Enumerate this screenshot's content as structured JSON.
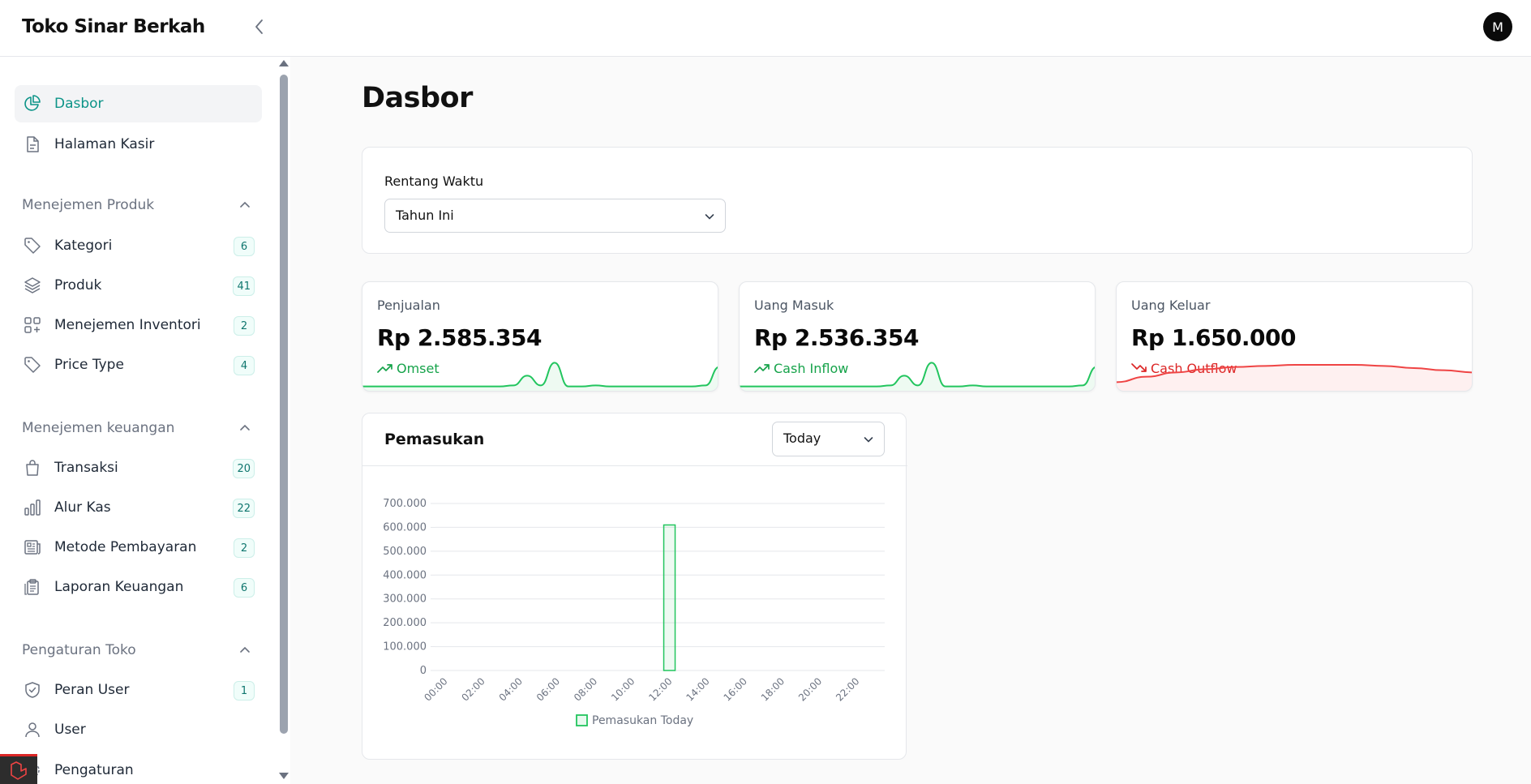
{
  "app": {
    "brand": "Toko Sinar Berkah",
    "avatar_initial": "M"
  },
  "sidebar": {
    "top_items": [
      {
        "label": "Dasbor",
        "icon": "chart-pie-icon",
        "active": true
      },
      {
        "label": "Halaman Kasir",
        "icon": "document-icon"
      }
    ],
    "groups": [
      {
        "label": "Menejemen Produk",
        "items": [
          {
            "label": "Kategori",
            "icon": "tag-icon",
            "badge": "6"
          },
          {
            "label": "Produk",
            "icon": "layers-icon",
            "badge": "41"
          },
          {
            "label": "Menejemen Inventori",
            "icon": "squares-plus-icon",
            "badge": "2"
          },
          {
            "label": "Price Type",
            "icon": "tag-icon",
            "badge": "4"
          }
        ]
      },
      {
        "label": "Menejemen keuangan",
        "items": [
          {
            "label": "Transaksi",
            "icon": "shopping-bag-icon",
            "badge": "20"
          },
          {
            "label": "Alur Kas",
            "icon": "bar-chart-icon",
            "badge": "22"
          },
          {
            "label": "Metode Pembayaran",
            "icon": "newspaper-icon",
            "badge": "2"
          },
          {
            "label": "Laporan Keuangan",
            "icon": "clipboard-icon",
            "badge": "6"
          }
        ]
      },
      {
        "label": "Pengaturan Toko",
        "items": [
          {
            "label": "Peran User",
            "icon": "shield-check-icon",
            "badge": "1"
          },
          {
            "label": "User",
            "icon": "user-icon"
          },
          {
            "label": "Pengaturan",
            "icon": "cog-icon"
          }
        ]
      }
    ]
  },
  "main": {
    "title": "Dasbor",
    "filter": {
      "label": "Rentang Waktu",
      "value": "Tahun Ini"
    },
    "stats": [
      {
        "label": "Penjualan",
        "value": "Rp 2.585.354",
        "desc": "Omset",
        "trend": "up",
        "color": "#22c55e",
        "spark": [
          4,
          4,
          4,
          4,
          4,
          4,
          4,
          4,
          4,
          4,
          4,
          5,
          14,
          5,
          26,
          4,
          4,
          5,
          4,
          4,
          4,
          4,
          4,
          4,
          4,
          5,
          22
        ]
      },
      {
        "label": "Uang Masuk",
        "value": "Rp 2.536.354",
        "desc": "Cash Inflow",
        "trend": "up",
        "color": "#22c55e",
        "spark": [
          4,
          4,
          4,
          4,
          4,
          4,
          4,
          4,
          4,
          4,
          4,
          5,
          14,
          5,
          26,
          4,
          4,
          5,
          4,
          4,
          4,
          4,
          4,
          4,
          4,
          5,
          22
        ]
      },
      {
        "label": "Uang Keluar",
        "value": "Rp 1.650.000",
        "desc": "Cash Outflow",
        "trend": "down",
        "color": "#ef4444",
        "spark": [
          8,
          13,
          17,
          20,
          22,
          23,
          24,
          24,
          24,
          23,
          21,
          19,
          17
        ]
      }
    ],
    "chart_card": {
      "title": "Pemasukan",
      "period": "Today"
    }
  },
  "chart_data": {
    "type": "bar",
    "title": "",
    "categories": [
      "00:00",
      "01:00",
      "02:00",
      "03:00",
      "04:00",
      "05:00",
      "06:00",
      "07:00",
      "08:00",
      "09:00",
      "10:00",
      "11:00",
      "12:00",
      "13:00",
      "14:00",
      "15:00",
      "16:00",
      "17:00",
      "18:00",
      "19:00",
      "20:00",
      "21:00",
      "22:00",
      "23:00"
    ],
    "x_tick_labels": [
      "00:00",
      "02:00",
      "04:00",
      "06:00",
      "08:00",
      "10:00",
      "12:00",
      "14:00",
      "16:00",
      "18:00",
      "20:00",
      "22:00"
    ],
    "series": [
      {
        "name": "Pemasukan Today",
        "color": "#22c55e",
        "values": [
          0,
          0,
          0,
          0,
          0,
          0,
          0,
          0,
          0,
          0,
          0,
          0,
          610000,
          0,
          0,
          0,
          0,
          0,
          0,
          0,
          0,
          0,
          0,
          0
        ]
      }
    ],
    "ylim": [
      0,
      700000
    ],
    "y_ticks": [
      "0",
      "100.000",
      "200.000",
      "300.000",
      "400.000",
      "500.000",
      "600.000",
      "700.000"
    ],
    "grid": true,
    "legend": "bottom"
  }
}
